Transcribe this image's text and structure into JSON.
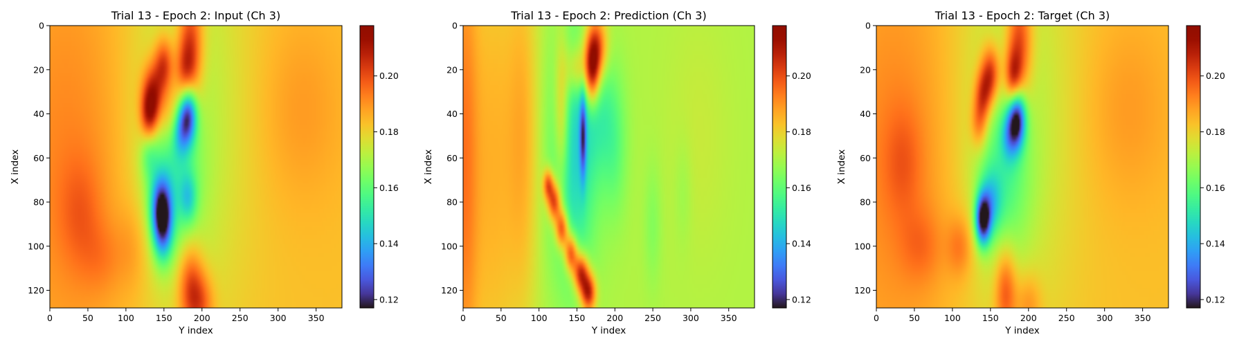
{
  "colormap": "turbo",
  "chart_data": [
    {
      "type": "heatmap",
      "title": "Trial 13 - Epoch 2: Input (Ch 3)",
      "xlabel": "Y index",
      "ylabel": "X index",
      "xlim": [
        0,
        384
      ],
      "ylim": [
        128,
        0
      ],
      "xticks": [
        0,
        50,
        100,
        150,
        200,
        250,
        300,
        350
      ],
      "yticks": [
        0,
        20,
        40,
        60,
        80,
        100,
        120
      ],
      "colorbar": {
        "vmin": 0.117,
        "vmax": 0.218,
        "ticks": [
          0.12,
          0.14,
          0.16,
          0.18,
          0.2
        ],
        "tick_labels": [
          "0.12",
          "0.14",
          "0.16",
          "0.18",
          "0.20"
        ]
      },
      "background": 0.183,
      "features": [
        {
          "x": 25,
          "y": 60,
          "sx": 60,
          "sy": 70,
          "v": 0.009
        },
        {
          "x": 40,
          "y": 85,
          "sx": 20,
          "sy": 18,
          "v": 0.008
        },
        {
          "x": 70,
          "y": 105,
          "sx": 20,
          "sy": 12,
          "v": 0.006
        },
        {
          "x": 330,
          "y": 38,
          "sx": 40,
          "sy": 30,
          "v": 0.006
        },
        {
          "x": 180,
          "y": 40,
          "sx": 55,
          "sy": 70,
          "v": -0.013
        },
        {
          "x": 185,
          "y": 8,
          "sx": 12,
          "sy": 18,
          "v": 0.028
        },
        {
          "x": 178,
          "y": 22,
          "sx": 10,
          "sy": 10,
          "v": 0.02
        },
        {
          "x": 135,
          "y": 32,
          "sx": 10,
          "sy": 10,
          "v": 0.034
        },
        {
          "x": 150,
          "y": 18,
          "sx": 9,
          "sy": 9,
          "v": 0.028
        },
        {
          "x": 130,
          "y": 42,
          "sx": 8,
          "sy": 8,
          "v": 0.022
        },
        {
          "x": 158,
          "y": 40,
          "sx": 10,
          "sy": 10,
          "v": 0.014
        },
        {
          "x": 182,
          "y": 40,
          "sx": 8,
          "sy": 9,
          "v": -0.045
        },
        {
          "x": 172,
          "y": 48,
          "sx": 8,
          "sy": 8,
          "v": -0.02
        },
        {
          "x": 160,
          "y": 70,
          "sx": 25,
          "sy": 25,
          "v": -0.018
        },
        {
          "x": 148,
          "y": 90,
          "sx": 9,
          "sy": 11,
          "v": -0.045
        },
        {
          "x": 145,
          "y": 80,
          "sx": 10,
          "sy": 10,
          "v": -0.022
        },
        {
          "x": 182,
          "y": 78,
          "sx": 8,
          "sy": 8,
          "v": -0.018
        },
        {
          "x": 130,
          "y": 58,
          "sx": 8,
          "sy": 8,
          "v": -0.012
        },
        {
          "x": 185,
          "y": 118,
          "sx": 12,
          "sy": 14,
          "v": 0.024
        },
        {
          "x": 200,
          "y": 126,
          "sx": 12,
          "sy": 10,
          "v": 0.015
        },
        {
          "x": 110,
          "y": 100,
          "sx": 15,
          "sy": 15,
          "v": 0.006
        }
      ]
    },
    {
      "type": "heatmap",
      "title": "Trial 13 - Epoch 2: Prediction (Ch 3)",
      "xlabel": "Y index",
      "ylabel": "X index",
      "xlim": [
        0,
        384
      ],
      "ylim": [
        128,
        0
      ],
      "xticks": [
        0,
        50,
        100,
        150,
        200,
        250,
        300,
        350
      ],
      "yticks": [
        0,
        20,
        40,
        60,
        80,
        100,
        120
      ],
      "colorbar": {
        "vmin": 0.117,
        "vmax": 0.218,
        "ticks": [
          0.12,
          0.14,
          0.16,
          0.18,
          0.2
        ],
        "tick_labels": [
          "0.12",
          "0.14",
          "0.16",
          "0.18",
          "0.20"
        ]
      },
      "background": 0.171,
      "features": [
        {
          "x": 0,
          "y": 64,
          "sx": 14,
          "sy": 90,
          "v": 0.02
        },
        {
          "x": 40,
          "y": 64,
          "sx": 25,
          "sy": 90,
          "v": 0.014
        },
        {
          "x": 80,
          "y": 50,
          "sx": 15,
          "sy": 60,
          "v": 0.012
        },
        {
          "x": 310,
          "y": 50,
          "sx": 30,
          "sy": 40,
          "v": 0.003
        },
        {
          "x": 120,
          "y": 80,
          "sx": 6,
          "sy": 6,
          "v": 0.036
        },
        {
          "x": 130,
          "y": 92,
          "sx": 6,
          "sy": 6,
          "v": 0.036
        },
        {
          "x": 142,
          "y": 103,
          "sx": 6,
          "sy": 6,
          "v": 0.036
        },
        {
          "x": 155,
          "y": 112,
          "sx": 7,
          "sy": 6,
          "v": 0.04
        },
        {
          "x": 165,
          "y": 121,
          "sx": 7,
          "sy": 6,
          "v": 0.04
        },
        {
          "x": 112,
          "y": 72,
          "sx": 5,
          "sy": 5,
          "v": 0.03
        },
        {
          "x": 175,
          "y": 10,
          "sx": 10,
          "sy": 10,
          "v": 0.036
        },
        {
          "x": 170,
          "y": 22,
          "sx": 7,
          "sy": 10,
          "v": 0.036
        },
        {
          "x": 130,
          "y": 40,
          "sx": 7,
          "sy": 25,
          "v": 0.02
        },
        {
          "x": 150,
          "y": 20,
          "sx": 10,
          "sy": 8,
          "v": 0.018
        },
        {
          "x": 145,
          "y": 60,
          "sx": 22,
          "sy": 40,
          "v": -0.024
        },
        {
          "x": 158,
          "y": 50,
          "sx": 3,
          "sy": 14,
          "v": -0.03
        },
        {
          "x": 182,
          "y": 40,
          "sx": 18,
          "sy": 20,
          "v": -0.012
        },
        {
          "x": 200,
          "y": 60,
          "sx": 12,
          "sy": 22,
          "v": -0.008
        },
        {
          "x": 250,
          "y": 90,
          "sx": 8,
          "sy": 20,
          "v": -0.006
        },
        {
          "x": 290,
          "y": 75,
          "sx": 8,
          "sy": 18,
          "v": -0.004
        }
      ]
    },
    {
      "type": "heatmap",
      "title": "Trial 13 - Epoch 2: Target (Ch 3)",
      "xlabel": "Y index",
      "ylabel": "X index",
      "xlim": [
        0,
        384
      ],
      "ylim": [
        128,
        0
      ],
      "xticks": [
        0,
        50,
        100,
        150,
        200,
        250,
        300,
        350
      ],
      "yticks": [
        0,
        20,
        40,
        60,
        80,
        100,
        120
      ],
      "colorbar": {
        "vmin": 0.117,
        "vmax": 0.218,
        "ticks": [
          0.12,
          0.14,
          0.16,
          0.18,
          0.2
        ],
        "tick_labels": [
          "0.12",
          "0.14",
          "0.16",
          "0.18",
          "0.20"
        ]
      },
      "background": 0.183,
      "features": [
        {
          "x": 25,
          "y": 60,
          "sx": 60,
          "sy": 70,
          "v": 0.009
        },
        {
          "x": 35,
          "y": 62,
          "sx": 18,
          "sy": 18,
          "v": 0.008
        },
        {
          "x": 60,
          "y": 100,
          "sx": 20,
          "sy": 12,
          "v": 0.008
        },
        {
          "x": 330,
          "y": 38,
          "sx": 40,
          "sy": 30,
          "v": 0.006
        },
        {
          "x": 180,
          "y": 40,
          "sx": 55,
          "sy": 70,
          "v": -0.013
        },
        {
          "x": 188,
          "y": 8,
          "sx": 12,
          "sy": 18,
          "v": 0.028
        },
        {
          "x": 180,
          "y": 24,
          "sx": 8,
          "sy": 9,
          "v": 0.026
        },
        {
          "x": 150,
          "y": 22,
          "sx": 9,
          "sy": 9,
          "v": 0.03
        },
        {
          "x": 140,
          "y": 32,
          "sx": 8,
          "sy": 8,
          "v": 0.024
        },
        {
          "x": 135,
          "y": 45,
          "sx": 8,
          "sy": 8,
          "v": 0.018
        },
        {
          "x": 185,
          "y": 42,
          "sx": 8,
          "sy": 9,
          "v": -0.052
        },
        {
          "x": 175,
          "y": 50,
          "sx": 8,
          "sy": 8,
          "v": -0.02
        },
        {
          "x": 165,
          "y": 70,
          "sx": 25,
          "sy": 25,
          "v": -0.016
        },
        {
          "x": 140,
          "y": 88,
          "sx": 7,
          "sy": 8,
          "v": -0.055
        },
        {
          "x": 150,
          "y": 80,
          "sx": 10,
          "sy": 10,
          "v": -0.02
        },
        {
          "x": 170,
          "y": 120,
          "sx": 10,
          "sy": 14,
          "v": 0.022
        },
        {
          "x": 110,
          "y": 100,
          "sx": 12,
          "sy": 10,
          "v": 0.012
        },
        {
          "x": 200,
          "y": 126,
          "sx": 12,
          "sy": 10,
          "v": 0.012
        }
      ]
    }
  ]
}
